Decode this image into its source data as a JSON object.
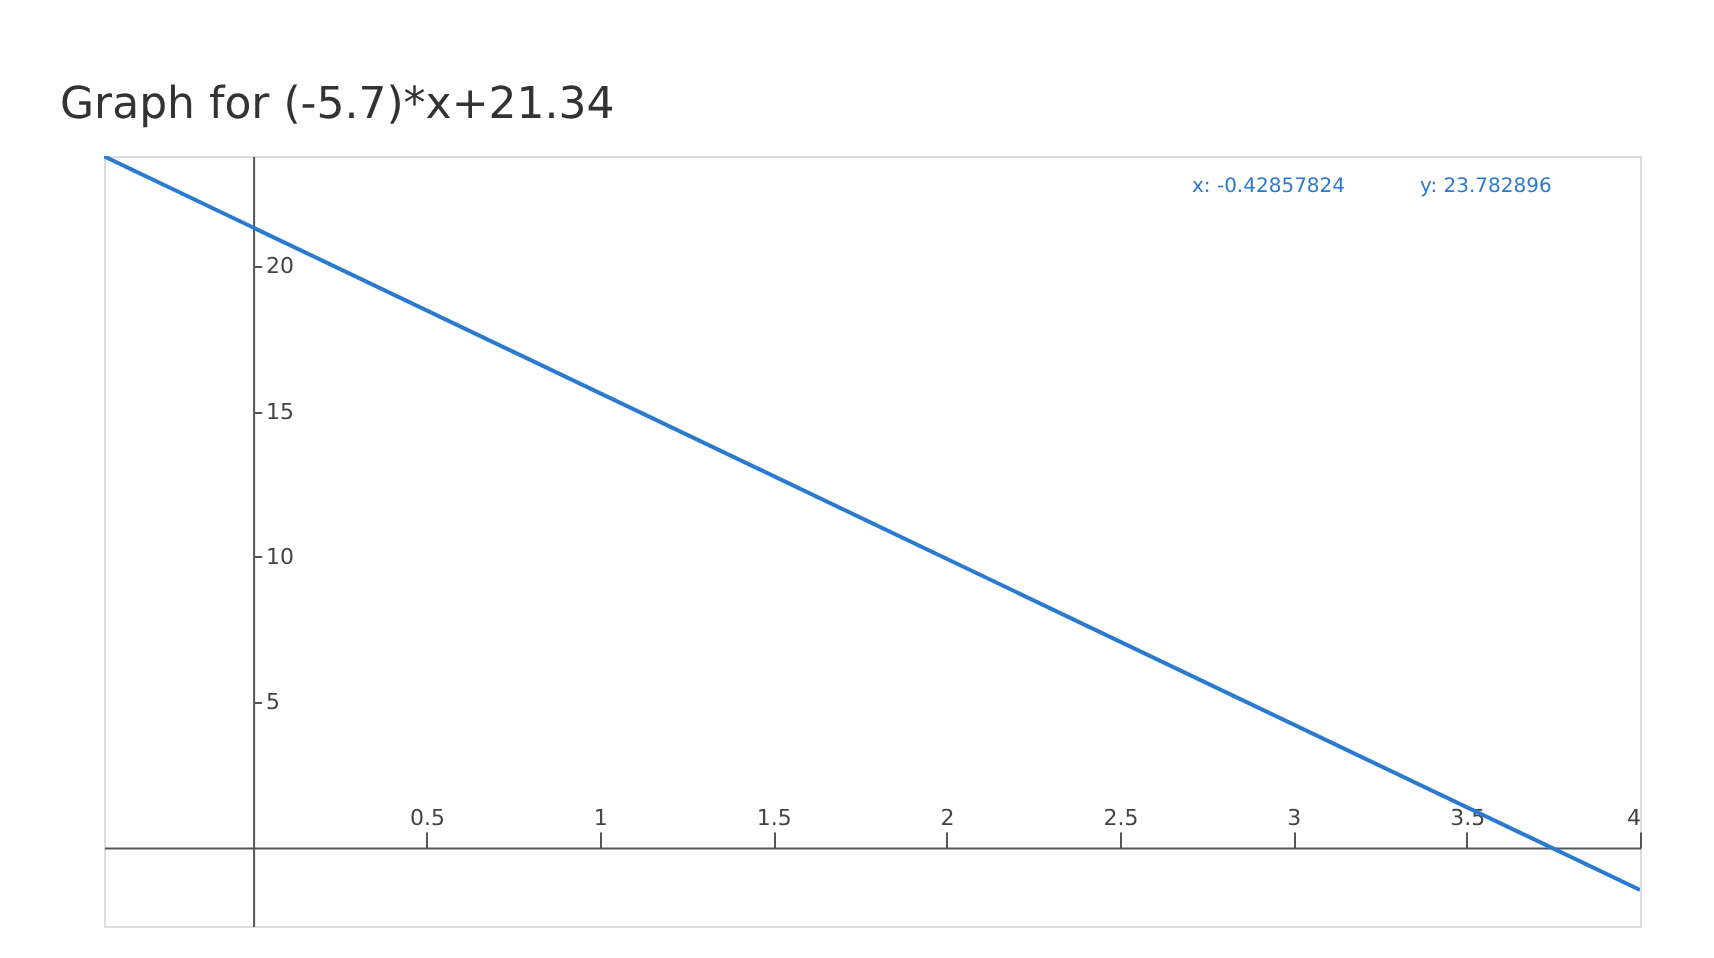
{
  "chart_data": {
    "type": "line",
    "title": "Graph for (-5.7)*x+21.34",
    "x": [
      -0.43,
      4.0
    ],
    "series": [
      {
        "color": "#2a7ad0",
        "values": [
          23.79,
          -1.46
        ]
      }
    ],
    "xlim": [
      -0.43,
      4.0
    ],
    "ylim": [
      -2.7,
      23.8
    ],
    "xticks": [
      0.5,
      1,
      1.5,
      2,
      2.5,
      3,
      3.5,
      4
    ],
    "yticks": [
      5,
      10,
      15,
      20
    ],
    "annotations": [
      "x: -0.42857824",
      "y: 23.782896"
    ],
    "grid": false,
    "marker": "none",
    "line_style": "solid"
  }
}
